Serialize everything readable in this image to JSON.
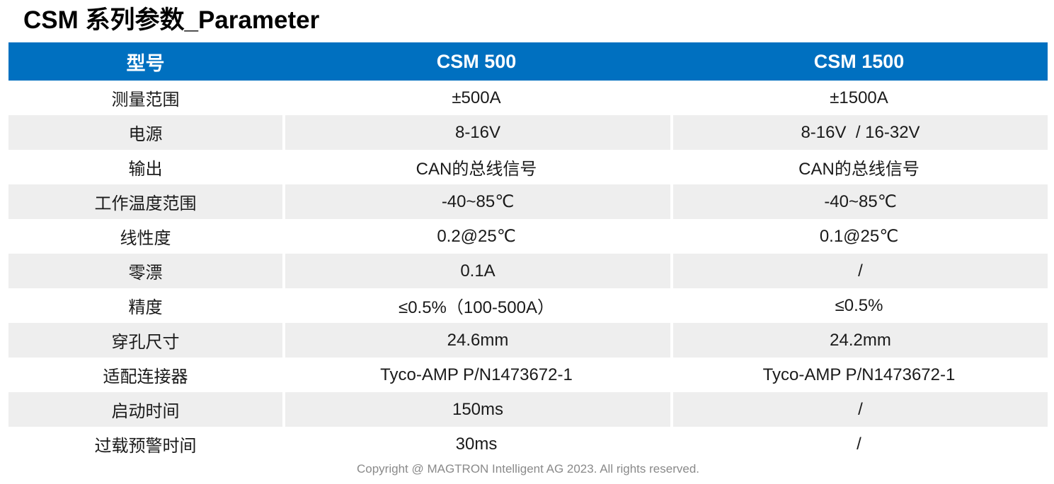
{
  "page": {
    "title": "CSM 系列参数_Parameter",
    "footer": "Copyright @ MAGTRON Intelligent AG 2023. All rights reserved."
  },
  "colors": {
    "header_bg": "#0070C0",
    "header_text": "#FFFFFF",
    "alt_row_bg": "#EEEEEE",
    "footer_text": "#8A8A8A",
    "body_text": "#1A1A1A"
  },
  "table": {
    "headers": {
      "parameter": "型号",
      "csm500": "CSM 500",
      "csm1500": "CSM 1500"
    },
    "rows": [
      {
        "label": "测量范围",
        "csm500": "±500A",
        "csm1500": "±1500A"
      },
      {
        "label": "电源",
        "csm500": "8-16V",
        "csm1500": "8-16V  / 16-32V"
      },
      {
        "label": "输出",
        "csm500": "CAN的总线信号",
        "csm1500": "CAN的总线信号"
      },
      {
        "label": "工作温度范围",
        "csm500": "-40~85℃",
        "csm1500": "-40~85℃"
      },
      {
        "label": "线性度",
        "csm500": "0.2@25℃",
        "csm1500": "0.1@25℃"
      },
      {
        "label": "零漂",
        "csm500": "0.1A",
        "csm1500": "/"
      },
      {
        "label": "精度",
        "csm500": "≤0.5%（100-500A）",
        "csm1500": "≤0.5%"
      },
      {
        "label": "穿孔尺寸",
        "csm500": "24.6mm",
        "csm1500": "24.2mm"
      },
      {
        "label": "适配连接器",
        "csm500": "Tyco-AMP P/N1473672-1",
        "csm1500": "Tyco-AMP P/N1473672-1"
      },
      {
        "label": "启动时间",
        "csm500": "150ms",
        "csm1500": "/"
      },
      {
        "label": "过载预警时间",
        "csm500": "30ms",
        "csm1500": "/"
      }
    ]
  }
}
